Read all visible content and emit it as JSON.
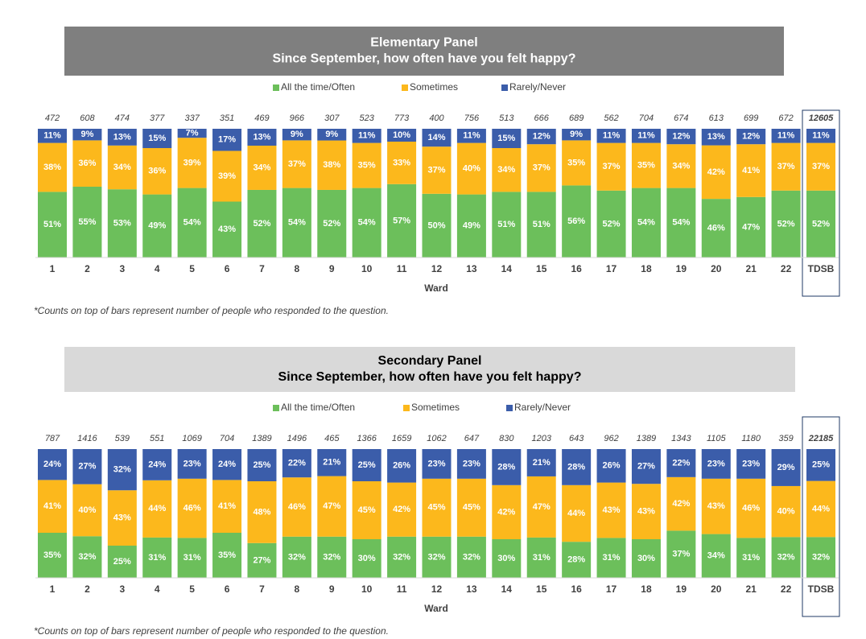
{
  "chart_data": [
    {
      "type": "bar",
      "stacked": true,
      "title": "Elementary Panel",
      "subtitle": "Since September, how often have you felt happy?",
      "x_label": "Ward",
      "footnote": "*Counts on top of bars represent number of people who responded to the question.",
      "categories": [
        "1",
        "2",
        "3",
        "4",
        "5",
        "6",
        "7",
        "8",
        "9",
        "10",
        "11",
        "12",
        "13",
        "14",
        "15",
        "16",
        "17",
        "18",
        "19",
        "20",
        "21",
        "22",
        "TDSB"
      ],
      "counts": [
        472,
        608,
        474,
        377,
        337,
        351,
        469,
        966,
        307,
        523,
        773,
        400,
        756,
        513,
        666,
        689,
        562,
        704,
        674,
        613,
        699,
        672,
        12605
      ],
      "series": [
        {
          "name": "All the time/Often",
          "color": "#6cbf5b",
          "values": [
            51,
            55,
            53,
            49,
            54,
            43,
            52,
            54,
            52,
            54,
            57,
            50,
            49,
            51,
            51,
            56,
            52,
            54,
            54,
            46,
            47,
            52,
            52
          ],
          "value_labels": [
            "51%",
            "55%",
            "53%",
            "49%",
            "54%",
            "43%",
            "52%",
            "54%",
            "52%",
            "54%",
            "57%",
            "50%",
            "49%",
            "51%",
            "51%",
            "56%",
            "52%",
            "54%",
            "54%",
            "46%",
            "47%",
            "52%",
            "52%"
          ]
        },
        {
          "name": "Sometimes",
          "color": "#fcb81c",
          "values": [
            38,
            36,
            34,
            36,
            39,
            39,
            34,
            37,
            38,
            35,
            33,
            37,
            40,
            34,
            37,
            35,
            37,
            35,
            34,
            42,
            41,
            37,
            37
          ],
          "value_labels": [
            "38%",
            "36%",
            "34%",
            "36%",
            "39%",
            "39%",
            "34%",
            "37%",
            "38%",
            "35%",
            "33%",
            "37%",
            "40%",
            "34%",
            "37%",
            "35%",
            "37%",
            "35%",
            "34%",
            "42%",
            "41%",
            "37%",
            "37%"
          ]
        },
        {
          "name": "Rarely/Never",
          "color": "#3b5daa",
          "values": [
            11,
            9,
            13,
            15,
            7,
            17,
            13,
            9,
            9,
            11,
            10,
            14,
            11,
            15,
            12,
            9,
            11,
            11,
            12,
            13,
            12,
            11,
            11
          ],
          "value_labels": [
            "11%",
            "9%",
            "13%",
            "15%",
            "7%",
            "17%",
            "13%",
            "9%",
            "9%",
            "11%",
            "10%",
            "14%",
            "11%",
            "15%",
            "12%",
            "9%",
            "11%",
            "11%",
            "12%",
            "13%",
            "12%",
            "11%",
            "11%"
          ]
        }
      ]
    },
    {
      "type": "bar",
      "stacked": true,
      "title": "Secondary Panel",
      "subtitle": "Since September, how often have you felt happy?",
      "x_label": "Ward",
      "footnote": "*Counts on top of bars represent number of people who responded to the question.",
      "categories": [
        "1",
        "2",
        "3",
        "4",
        "5",
        "6",
        "7",
        "8",
        "9",
        "10",
        "11",
        "12",
        "13",
        "14",
        "15",
        "16",
        "17",
        "18",
        "19",
        "20",
        "21",
        "22",
        "TDSB"
      ],
      "counts": [
        787,
        1416,
        539,
        551,
        1069,
        704,
        1389,
        1496,
        465,
        1366,
        1659,
        1062,
        647,
        830,
        1203,
        643,
        962,
        1389,
        1343,
        1105,
        1180,
        359,
        22185
      ],
      "series": [
        {
          "name": "All the time/Often",
          "color": "#6cbf5b",
          "values": [
            35,
            32,
            25,
            31,
            31,
            35,
            27,
            32,
            32,
            30,
            32,
            32,
            32,
            30,
            31,
            28,
            31,
            30,
            37,
            34,
            31,
            32,
            32
          ],
          "value_labels": [
            "35%",
            "32%",
            "25%",
            "31%",
            "31%",
            "35%",
            "27%",
            "32%",
            "32%",
            "30%",
            "32%",
            "32%",
            "32%",
            "30%",
            "31%",
            "28%",
            "31%",
            "30%",
            "37%",
            "34%",
            "31%",
            "32%",
            "32%"
          ]
        },
        {
          "name": "Sometimes",
          "color": "#fcb81c",
          "values": [
            41,
            40,
            43,
            44,
            46,
            41,
            48,
            46,
            47,
            45,
            42,
            45,
            45,
            42,
            47,
            44,
            43,
            43,
            42,
            43,
            46,
            40,
            44
          ],
          "value_labels": [
            "41%",
            "40%",
            "43%",
            "44%",
            "46%",
            "41%",
            "48%",
            "46%",
            "47%",
            "45%",
            "42%",
            "45%",
            "45%",
            "42%",
            "47%",
            "44%",
            "43%",
            "43%",
            "42%",
            "43%",
            "46%",
            "40%",
            "44%"
          ]
        },
        {
          "name": "Rarely/Never",
          "color": "#3b5daa",
          "values": [
            24,
            27,
            32,
            24,
            23,
            24,
            25,
            22,
            21,
            25,
            26,
            23,
            23,
            28,
            21,
            28,
            26,
            27,
            22,
            23,
            23,
            29,
            25
          ],
          "value_labels": [
            "24%",
            "27%",
            "32%",
            "24%",
            "23%",
            "24%",
            "25%",
            "22%",
            "21%",
            "25%",
            "26%",
            "23%",
            "23%",
            "28%",
            "21%",
            "28%",
            "26%",
            "27%",
            "22%",
            "23%",
            "23%",
            "29%",
            "25%"
          ]
        }
      ]
    }
  ]
}
